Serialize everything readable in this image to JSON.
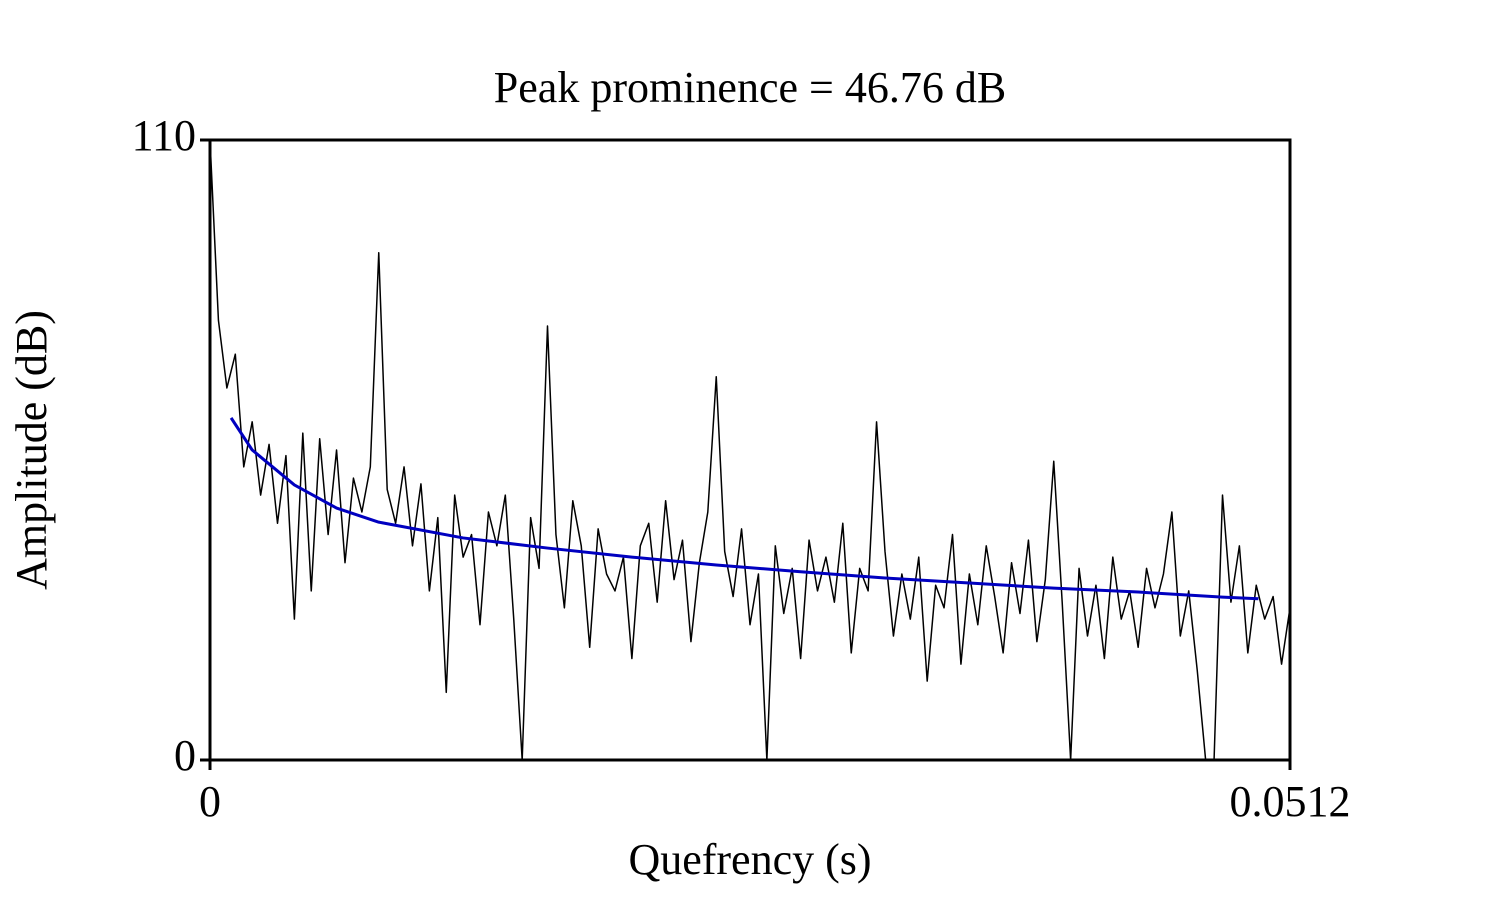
{
  "chart_data": {
    "type": "line",
    "title": "Peak prominence = 46.76 dB",
    "x_label": "Quefrency (s)",
    "y_label": "Amplitude (dB)",
    "xlim": [
      0,
      0.0512
    ],
    "xticks": [
      0,
      0.0512
    ],
    "ylim": [
      0,
      110
    ],
    "yticks": [
      0,
      110
    ],
    "grid": false,
    "series": [
      {
        "color": "#000000",
        "x": [
          0,
          0.0004,
          0.0008,
          0.0012,
          0.0016,
          0.002,
          0.0024,
          0.0028,
          0.0032,
          0.0036,
          0.004,
          0.0044,
          0.0048,
          0.0052,
          0.0056,
          0.006,
          0.0064,
          0.0068,
          0.0072,
          0.0076,
          0.008,
          0.0084,
          0.0088,
          0.0092,
          0.0096,
          0.01,
          0.0104,
          0.0108,
          0.0112,
          0.0116,
          0.012,
          0.0124,
          0.0128,
          0.0132,
          0.0136,
          0.014,
          0.0144,
          0.0148,
          0.0152,
          0.0156,
          0.016,
          0.0164,
          0.0168,
          0.0172,
          0.0176,
          0.018,
          0.0184,
          0.0188,
          0.0192,
          0.0196,
          0.02,
          0.0204,
          0.0208,
          0.0212,
          0.0216,
          0.022,
          0.0224,
          0.0228,
          0.0232,
          0.0236,
          0.024,
          0.0244,
          0.0248,
          0.0252,
          0.0256,
          0.026,
          0.0264,
          0.0268,
          0.0272,
          0.0276,
          0.028,
          0.0284,
          0.0288,
          0.0292,
          0.0296,
          0.03,
          0.0304,
          0.0308,
          0.0312,
          0.0316,
          0.032,
          0.0324,
          0.0328,
          0.0332,
          0.0336,
          0.034,
          0.0344,
          0.0348,
          0.0352,
          0.0356,
          0.036,
          0.0364,
          0.0368,
          0.0372,
          0.0376,
          0.038,
          0.0384,
          0.0388,
          0.0392,
          0.0396,
          0.04,
          0.0404,
          0.0408,
          0.0412,
          0.0416,
          0.042,
          0.0424,
          0.0428,
          0.0432,
          0.0436,
          0.044,
          0.0444,
          0.0448,
          0.0452,
          0.0456,
          0.046,
          0.0464,
          0.0468,
          0.0472,
          0.0476,
          0.048,
          0.0484,
          0.0488,
          0.0492,
          0.0496,
          0.05,
          0.0504,
          0.0508,
          0.0512
        ],
        "values": [
          110,
          78,
          66,
          72,
          52,
          60,
          47,
          56,
          42,
          54,
          25,
          58,
          30,
          57,
          40,
          55,
          35,
          50,
          44,
          52,
          90,
          48,
          42,
          52,
          38,
          49,
          30,
          43,
          12,
          47,
          36,
          40,
          24,
          44,
          38,
          47,
          25,
          0,
          43,
          34,
          77,
          40,
          27,
          46,
          38,
          20,
          41,
          33,
          30,
          36,
          18,
          38,
          42,
          28,
          46,
          32,
          39,
          21,
          35,
          44,
          68,
          37,
          29,
          41,
          24,
          33,
          0,
          38,
          26,
          34,
          18,
          39,
          30,
          36,
          28,
          42,
          19,
          34,
          30,
          60,
          37,
          22,
          33,
          25,
          36,
          14,
          31,
          27,
          40,
          17,
          33,
          24,
          38,
          29,
          19,
          35,
          26,
          39,
          21,
          32,
          53,
          28,
          0,
          34,
          22,
          31,
          18,
          36,
          25,
          30,
          20,
          34,
          27,
          33,
          44,
          22,
          30,
          16,
          0,
          0,
          47,
          28,
          38,
          19,
          31,
          25,
          29,
          17,
          27
        ]
      },
      {
        "color": "#0000c0",
        "x": [
          0.001,
          0.002,
          0.004,
          0.006,
          0.008,
          0.012,
          0.016,
          0.02,
          0.024,
          0.028,
          0.032,
          0.036,
          0.04,
          0.044,
          0.048,
          0.0497
        ],
        "values": [
          60.7,
          55,
          48.8,
          44.7,
          42.2,
          39.4,
          37.6,
          36,
          34.6,
          33.4,
          32.3,
          31.4,
          30.5,
          29.8,
          28.9,
          28.6
        ]
      }
    ]
  }
}
